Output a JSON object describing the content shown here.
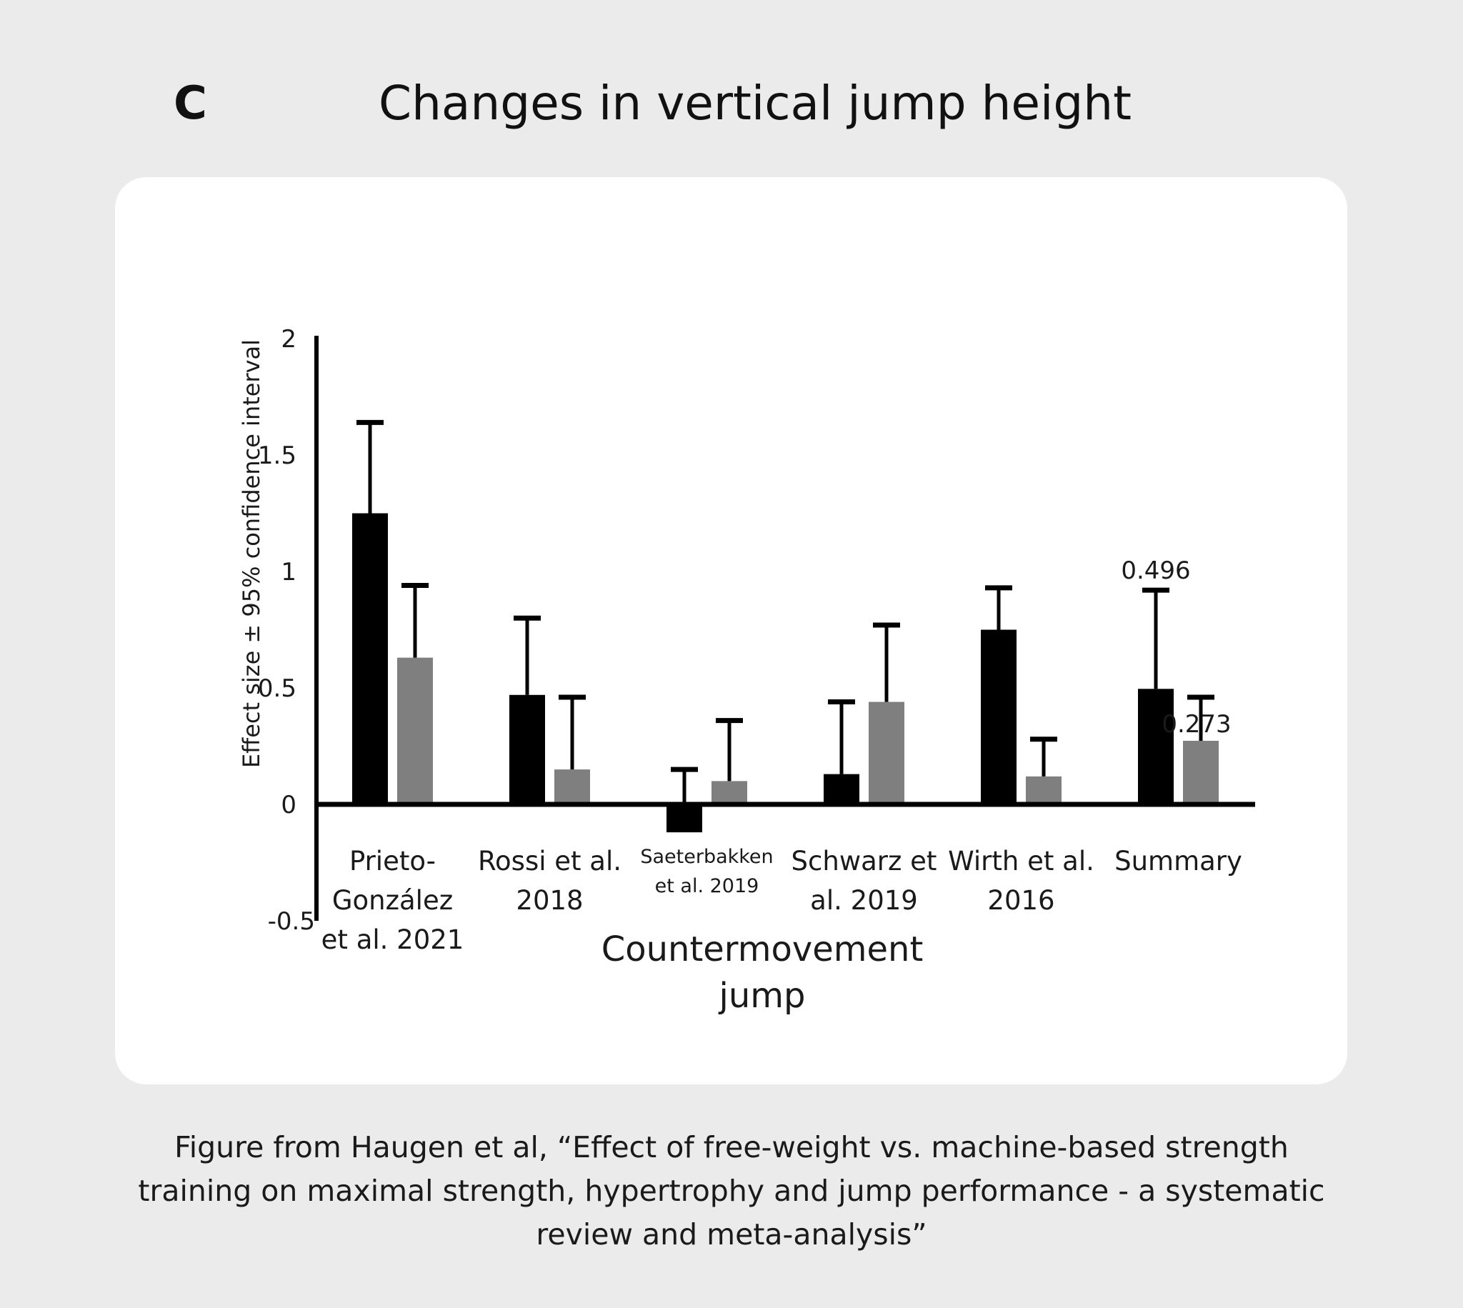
{
  "panel_letter": "C",
  "title": "Changes in vertical jump height",
  "caption_lines": [
    "Figure from Haugen et al, “Effect of free-weight vs. machine-based strength",
    "training on maximal strength, hypertrophy and jump performance - a systematic",
    "review and meta-analysis”"
  ],
  "chart_data": {
    "type": "bar",
    "ylabel": "Effect size ± 95% confidence interval",
    "xlabel_lines": [
      "Countermovement",
      "jump"
    ],
    "ylim": [
      -0.5,
      2
    ],
    "yticks": [
      {
        "value": 2,
        "label": "2"
      },
      {
        "value": 1.5,
        "label": "1.5"
      },
      {
        "value": 1,
        "label": "1"
      },
      {
        "value": 0.5,
        "label": "0.5"
      },
      {
        "value": 0,
        "label": "0"
      },
      {
        "value": -0.5,
        "label": "-0.5"
      }
    ],
    "grid": false,
    "legend": "none",
    "categories": [
      {
        "lines": [
          "Prieto-",
          "González",
          "et al. 2021"
        ],
        "small": false
      },
      {
        "lines": [
          "Rossi et al.",
          "2018"
        ],
        "small": false
      },
      {
        "lines": [
          "Saeterbakken",
          "et al. 2019"
        ],
        "small": true
      },
      {
        "lines": [
          "Schwarz et",
          "al. 2019"
        ],
        "small": false
      },
      {
        "lines": [
          "Wirth et al.",
          "2016"
        ],
        "small": false
      },
      {
        "lines": [
          "Summary"
        ],
        "small": false
      }
    ],
    "series": [
      {
        "color": "#000000",
        "values": [
          1.25,
          0.47,
          -0.12,
          0.13,
          0.75,
          0.496
        ],
        "error_upper": [
          1.64,
          0.8,
          0.15,
          0.44,
          0.93,
          0.92
        ]
      },
      {
        "color": "#7f7f7f",
        "values": [
          0.63,
          0.15,
          0.1,
          0.44,
          0.12,
          0.273
        ],
        "error_upper": [
          0.94,
          0.46,
          0.36,
          0.77,
          0.28,
          0.46
        ]
      }
    ],
    "annotations": [
      {
        "category_index": 5,
        "series_index": 0,
        "label": "0.496"
      },
      {
        "category_index": 5,
        "series_index": 1,
        "label": "0.273"
      }
    ]
  }
}
